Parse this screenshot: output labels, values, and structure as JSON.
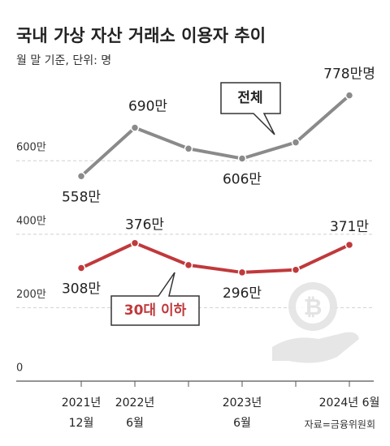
{
  "chart_data": {
    "type": "line",
    "title": "국내 가상 자산 거래소 이용자 추이",
    "subtitle": "월 말 기준, 단위: 명",
    "source": "자료=금융위원회",
    "categories": [
      [
        "2021년",
        "12월"
      ],
      [
        "2022년",
        "6월"
      ],
      null,
      [
        "2023년",
        "6월"
      ],
      null,
      [
        "2024년 6월"
      ]
    ],
    "series": [
      {
        "name": "전체",
        "color": "#8a8a8a",
        "values": [
          558,
          690,
          633,
          606,
          650,
          778
        ],
        "value_labels": [
          "558만",
          "690만",
          null,
          "606만",
          null,
          "778만명"
        ]
      },
      {
        "name": "30대 이하",
        "color": "#c0393b",
        "values": [
          308,
          376,
          316,
          296,
          303,
          371
        ],
        "value_labels": [
          "308만",
          "376만",
          null,
          "296만",
          null,
          "371만"
        ]
      }
    ],
    "ylim": [
      0,
      850
    ],
    "yticks": [
      {
        "value": 0,
        "label": "0"
      },
      {
        "value": 200,
        "label": "200만"
      },
      {
        "value": 400,
        "label": "400만"
      },
      {
        "value": 600,
        "label": "600만"
      }
    ],
    "grid": true
  }
}
